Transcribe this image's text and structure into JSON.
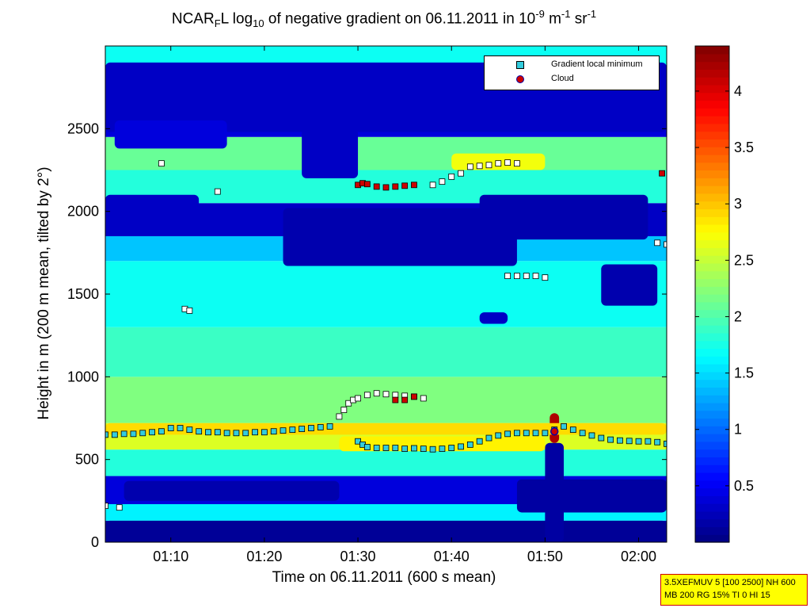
{
  "figure": {
    "title_prefix": "NCAR",
    "title_sub1": "F",
    "title_mid": "L log",
    "title_sub2": "10",
    "title_rest": " of negative gradient on 06.11.2011 in 10",
    "title_sup1": "-9",
    "title_unit1": " m",
    "title_sup2": "-1",
    "title_unit2": " sr",
    "title_sup3": "-1",
    "xlabel": "Time on 06.11.2011 (600 s mean)",
    "ylabel": "Height in m (200 m mean, tilted by 2°)",
    "info_line1": "3.5XEFMUV 5 [100 2500] NH 600",
    "info_line2": "MB 200 RG 15% TI 0 HI 15"
  },
  "legend": {
    "items": [
      {
        "label": "Gradient local minimum",
        "color": "#33ccdd"
      },
      {
        "label": "Cloud",
        "color": "#cc0000"
      }
    ]
  },
  "chart_data": {
    "type": "heatmap",
    "xlabel": "Time on 06.11.2011 (600 s mean)",
    "ylabel": "Height in m (200 m mean, tilted by 2°)",
    "x_ticks": [
      "01:10",
      "01:20",
      "01:30",
      "01:40",
      "01:50",
      "02:00"
    ],
    "x_tick_minutes": [
      70,
      80,
      90,
      100,
      110,
      120
    ],
    "xlim_minutes": [
      63,
      123
    ],
    "ylim": [
      0,
      3000
    ],
    "y_ticks": [
      0,
      500,
      1000,
      1500,
      2000,
      2500
    ],
    "colorbar": {
      "ticks": [
        0.5,
        1,
        1.5,
        2,
        2.5,
        3,
        3.5,
        4
      ],
      "range": [
        0,
        4.4
      ],
      "colormap": "jet"
    },
    "bands": [
      {
        "bottom": 0,
        "top": 130,
        "value": 0.2
      },
      {
        "bottom": 130,
        "top": 230,
        "value": 1.6
      },
      {
        "bottom": 230,
        "top": 400,
        "value": 0.4
      },
      {
        "bottom": 400,
        "top": 560,
        "value": 1.8
      },
      {
        "bottom": 560,
        "top": 720,
        "value": 2.6
      },
      {
        "bottom": 720,
        "top": 1000,
        "value": 2.2
      },
      {
        "bottom": 1000,
        "top": 1300,
        "value": 1.9
      },
      {
        "bottom": 1300,
        "top": 1700,
        "value": 1.7
      },
      {
        "bottom": 1700,
        "top": 1850,
        "value": 1.4
      },
      {
        "bottom": 1850,
        "top": 2050,
        "value": 0.3
      },
      {
        "bottom": 2050,
        "top": 2250,
        "value": 1.8
      },
      {
        "bottom": 2250,
        "top": 2450,
        "value": 2.1
      },
      {
        "bottom": 2450,
        "top": 2750,
        "value": 0.4
      },
      {
        "bottom": 2750,
        "top": 3000,
        "value": 1.7
      }
    ],
    "blobs": [
      {
        "x0": 63,
        "x1": 123,
        "y0": 0,
        "y1": 130,
        "value": 0.1
      },
      {
        "x0": 65,
        "x1": 88,
        "y0": 250,
        "y1": 370,
        "value": 0.2
      },
      {
        "x0": 107,
        "x1": 123,
        "y0": 180,
        "y1": 380,
        "value": 0.15
      },
      {
        "x0": 110,
        "x1": 112,
        "y0": 0,
        "y1": 600,
        "value": 0.15
      },
      {
        "x0": 103,
        "x1": 121,
        "y0": 1830,
        "y1": 2100,
        "value": 0.2
      },
      {
        "x0": 82,
        "x1": 107,
        "y0": 1670,
        "y1": 2020,
        "value": 0.2
      },
      {
        "x0": 63,
        "x1": 73,
        "y0": 1930,
        "y1": 2100,
        "value": 0.3
      },
      {
        "x0": 63,
        "x1": 123,
        "y0": 2480,
        "y1": 2900,
        "value": 0.3
      },
      {
        "x0": 64,
        "x1": 76,
        "y0": 2380,
        "y1": 2550,
        "value": 0.4
      },
      {
        "x0": 84,
        "x1": 90,
        "y0": 2200,
        "y1": 2500,
        "value": 0.3
      },
      {
        "x0": 116,
        "x1": 122,
        "y0": 1430,
        "y1": 1680,
        "value": 0.2
      },
      {
        "x0": 103,
        "x1": 106,
        "y0": 1320,
        "y1": 1390,
        "value": 0.3
      },
      {
        "x0": 110.5,
        "x1": 111.5,
        "y0": 600,
        "y1": 780,
        "value": 4.2
      },
      {
        "x0": 63,
        "x1": 123,
        "y0": 650,
        "y1": 720,
        "value": 2.9
      },
      {
        "x0": 88,
        "x1": 110,
        "y0": 550,
        "y1": 640,
        "value": 2.8
      },
      {
        "x0": 100,
        "x1": 110,
        "y0": 2250,
        "y1": 2350,
        "value": 2.7
      }
    ],
    "series": [
      {
        "name": "Gradient local minimum",
        "points": [
          [
            63.0,
            650
          ],
          [
            64.0,
            650
          ],
          [
            65.0,
            655
          ],
          [
            66.0,
            655
          ],
          [
            67.0,
            660
          ],
          [
            68.0,
            665
          ],
          [
            69.0,
            670
          ],
          [
            70.0,
            690
          ],
          [
            71.0,
            690
          ],
          [
            72.0,
            680
          ],
          [
            73.0,
            670
          ],
          [
            74.0,
            665
          ],
          [
            75.0,
            665
          ],
          [
            76.0,
            660
          ],
          [
            77.0,
            660
          ],
          [
            78.0,
            660
          ],
          [
            79.0,
            665
          ],
          [
            80.0,
            665
          ],
          [
            81.0,
            670
          ],
          [
            82.0,
            675
          ],
          [
            83.0,
            680
          ],
          [
            84.0,
            685
          ],
          [
            85.0,
            690
          ],
          [
            86.0,
            695
          ],
          [
            87.0,
            700
          ],
          [
            88.0,
            760
          ],
          [
            88.5,
            800
          ],
          [
            89.0,
            840
          ],
          [
            89.5,
            860
          ],
          [
            90.0,
            870
          ],
          [
            91.0,
            890
          ],
          [
            92.0,
            900
          ],
          [
            93.0,
            895
          ],
          [
            94.0,
            890
          ],
          [
            95.0,
            885
          ],
          [
            96.0,
            880
          ],
          [
            97.0,
            870
          ],
          [
            90.0,
            610
          ],
          [
            90.5,
            590
          ],
          [
            91.0,
            575
          ],
          [
            92.0,
            570
          ],
          [
            93.0,
            570
          ],
          [
            94.0,
            570
          ],
          [
            95.0,
            565
          ],
          [
            96.0,
            568
          ],
          [
            97.0,
            565
          ],
          [
            98.0,
            562
          ],
          [
            99.0,
            565
          ],
          [
            100.0,
            570
          ],
          [
            101.0,
            578
          ],
          [
            102.0,
            590
          ],
          [
            103.0,
            610
          ],
          [
            104.0,
            630
          ],
          [
            105.0,
            645
          ],
          [
            106.0,
            655
          ],
          [
            107.0,
            660
          ],
          [
            108.0,
            660
          ],
          [
            109.0,
            660
          ],
          [
            110.0,
            660
          ],
          [
            111.0,
            680
          ],
          [
            112.0,
            700
          ],
          [
            113.0,
            680
          ],
          [
            114.0,
            660
          ],
          [
            115.0,
            645
          ],
          [
            116.0,
            630
          ],
          [
            117.0,
            620
          ],
          [
            118.0,
            615
          ],
          [
            119.0,
            612
          ],
          [
            120.0,
            610
          ],
          [
            121.0,
            610
          ],
          [
            122.0,
            605
          ],
          [
            123.0,
            595
          ],
          [
            69.0,
            2290
          ],
          [
            75.0,
            2120
          ],
          [
            71.5,
            1410
          ],
          [
            72.0,
            1400
          ],
          [
            98.0,
            2160
          ],
          [
            99.0,
            2180
          ],
          [
            100.0,
            2210
          ],
          [
            101.0,
            2230
          ],
          [
            102.0,
            2270
          ],
          [
            103.0,
            2275
          ],
          [
            104.0,
            2280
          ],
          [
            105.0,
            2290
          ],
          [
            106.0,
            2295
          ],
          [
            107.0,
            2290
          ],
          [
            106.0,
            1610
          ],
          [
            107.0,
            1610
          ],
          [
            108.0,
            1610
          ],
          [
            109.0,
            1610
          ],
          [
            110.0,
            1600
          ],
          [
            122.0,
            1810
          ],
          [
            123.0,
            1800
          ],
          [
            63.0,
            220
          ],
          [
            64.5,
            210
          ]
        ]
      },
      {
        "name": "Cloud",
        "points": [
          [
            90.0,
            2160
          ],
          [
            90.5,
            2170
          ],
          [
            91.0,
            2165
          ],
          [
            92.0,
            2150
          ],
          [
            93.0,
            2145
          ],
          [
            94.0,
            2150
          ],
          [
            95.0,
            2155
          ],
          [
            96.0,
            2160
          ],
          [
            94.0,
            860
          ],
          [
            95.0,
            860
          ],
          [
            96.0,
            880
          ],
          [
            122.5,
            2230
          ],
          [
            111.0,
            670
          ]
        ]
      }
    ]
  }
}
